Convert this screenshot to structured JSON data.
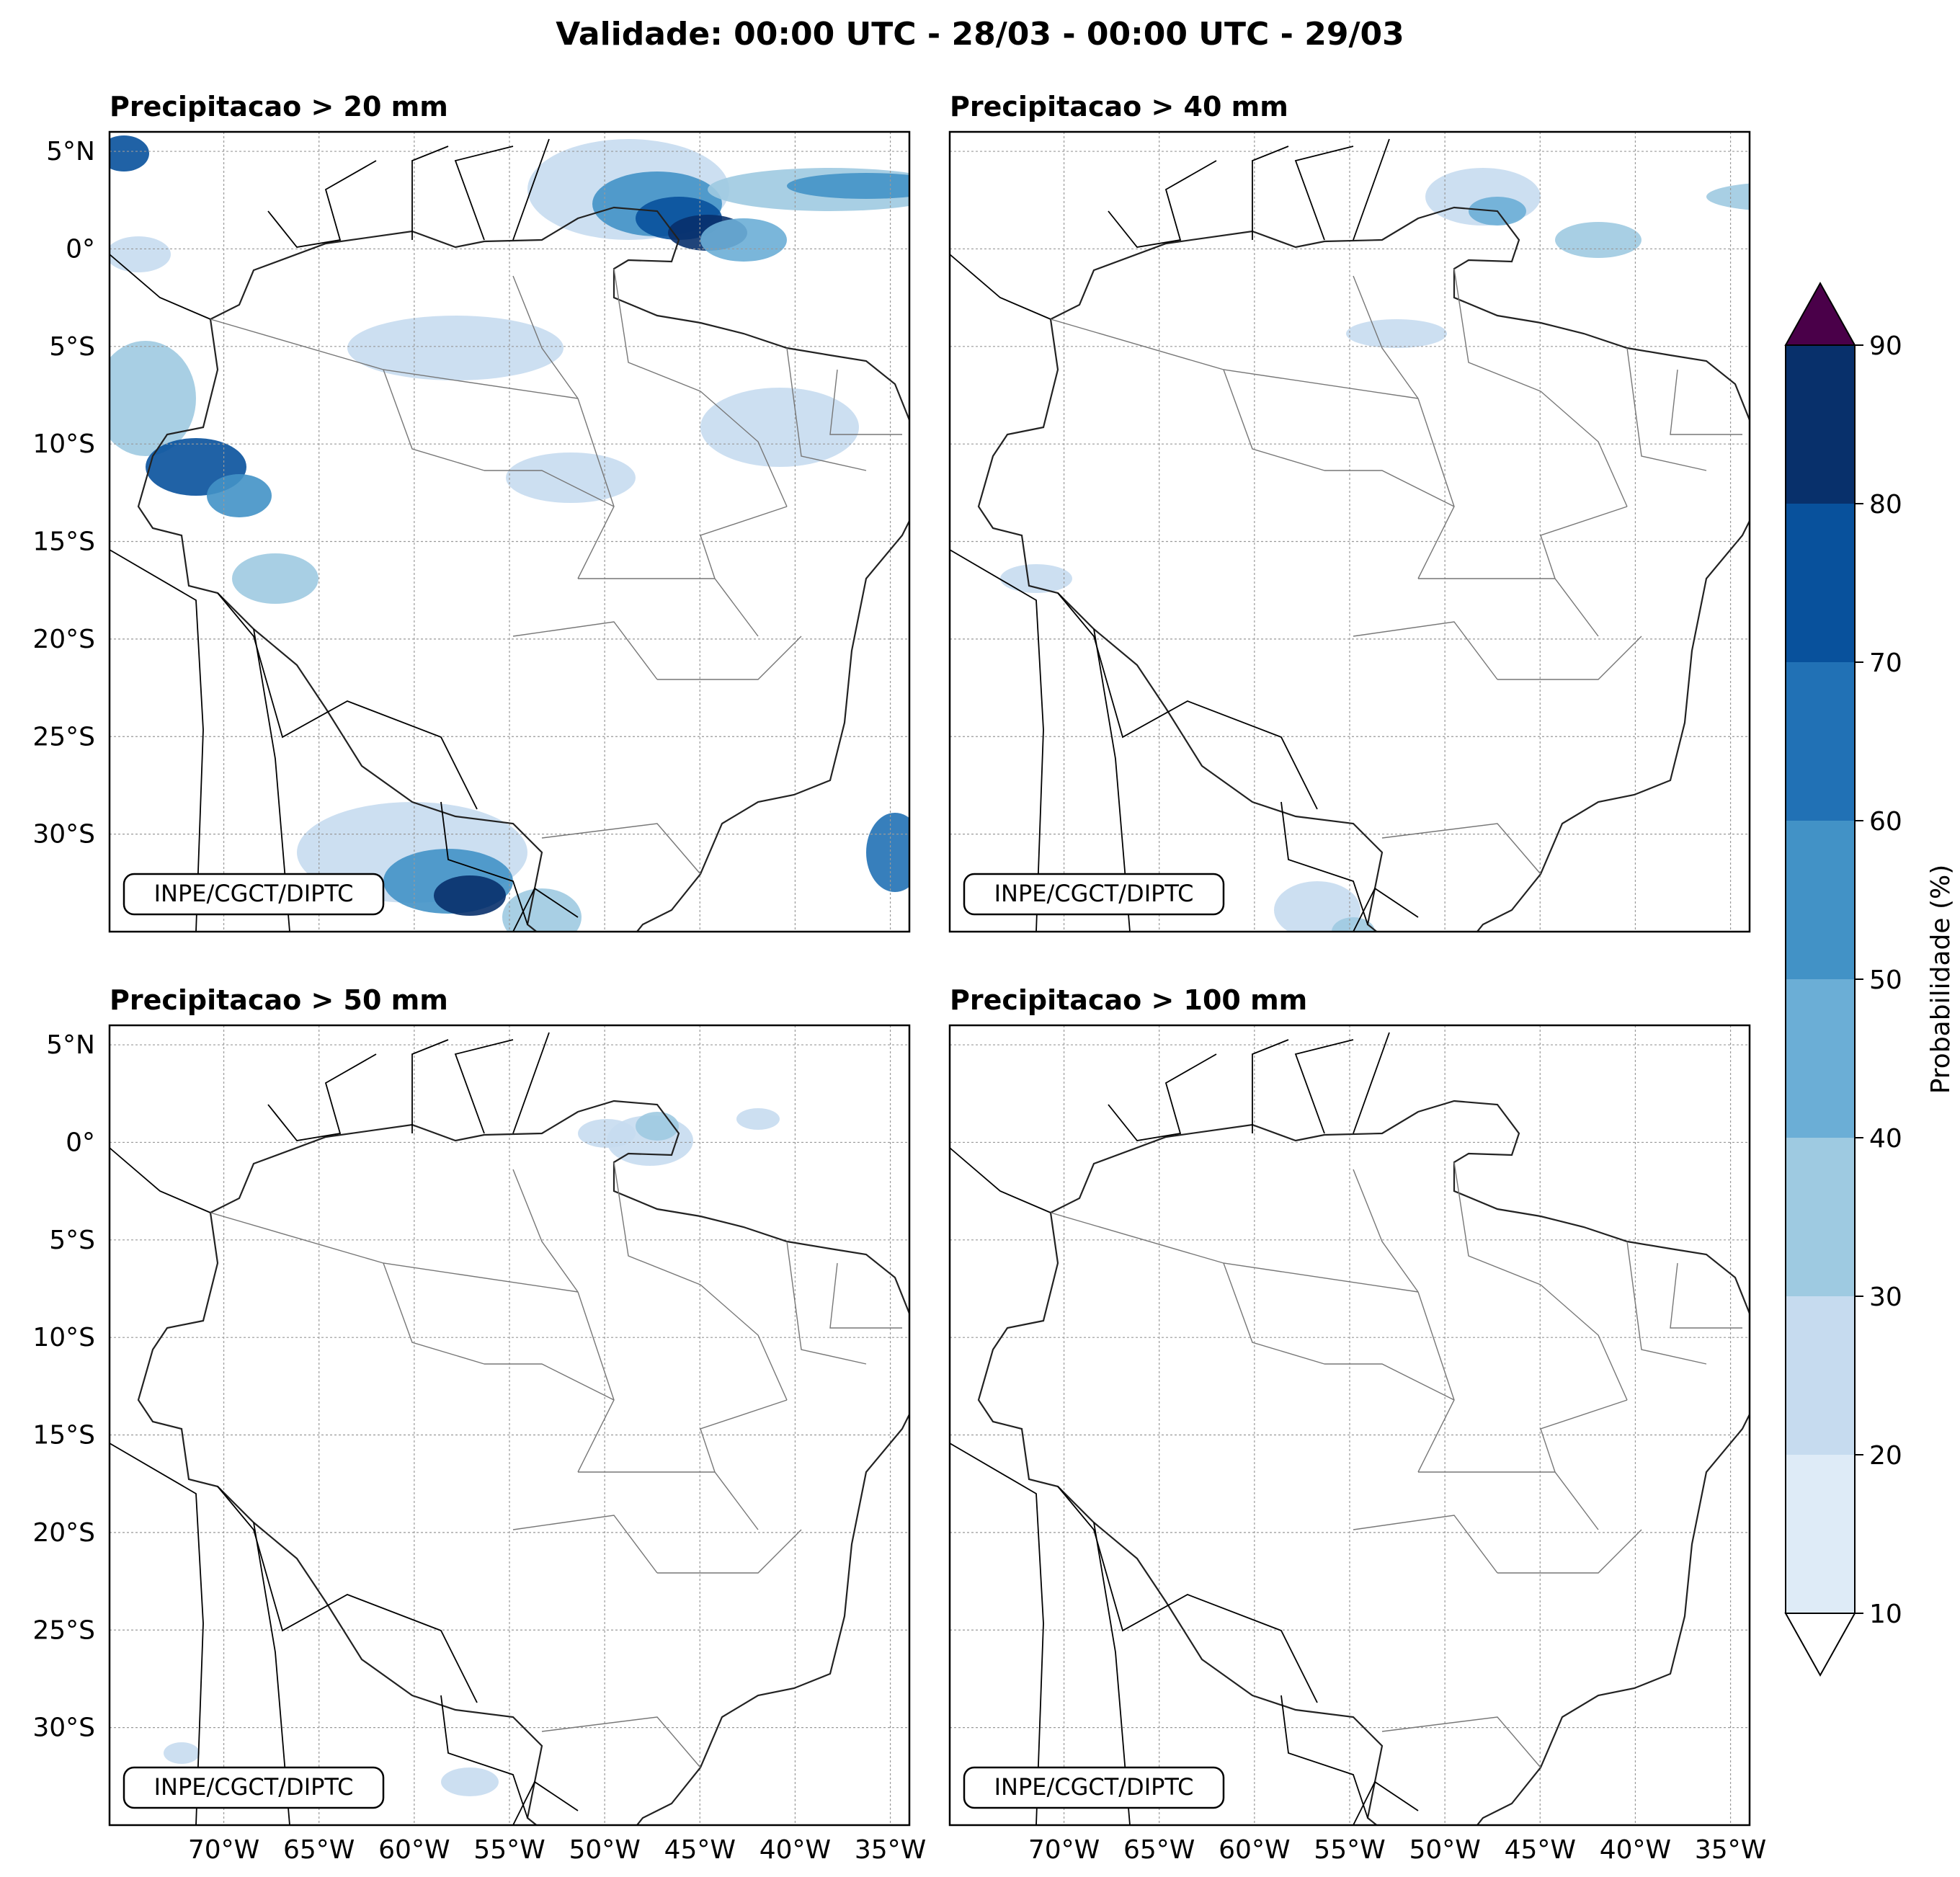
{
  "figure": {
    "title": "Validade: 00:00 UTC - 28/03 - 00:00 UTC - 29/03",
    "credit": "INPE/CGCT/DIPTC"
  },
  "panels": [
    {
      "id": "p20",
      "title": "Precipitacao > 20 mm",
      "threshold_mm": 20
    },
    {
      "id": "p40",
      "title": "Precipitacao > 40 mm",
      "threshold_mm": 40
    },
    {
      "id": "p50",
      "title": "Precipitacao > 50 mm",
      "threshold_mm": 50
    },
    {
      "id": "p100",
      "title": "Precipitacao > 100 mm",
      "threshold_mm": 100
    }
  ],
  "map": {
    "lon_range": [
      -76,
      -34
    ],
    "lat_range": [
      -35,
      6
    ],
    "lon_ticks": [
      {
        "value": -70,
        "label": "70°W"
      },
      {
        "value": -65,
        "label": "65°W"
      },
      {
        "value": -60,
        "label": "60°W"
      },
      {
        "value": -55,
        "label": "55°W"
      },
      {
        "value": -50,
        "label": "50°W"
      },
      {
        "value": -45,
        "label": "45°W"
      },
      {
        "value": -40,
        "label": "40°W"
      },
      {
        "value": -35,
        "label": "35°W"
      }
    ],
    "lat_ticks": [
      {
        "value": 5,
        "label": "5°N"
      },
      {
        "value": 0,
        "label": "0°"
      },
      {
        "value": -5,
        "label": "5°S"
      },
      {
        "value": -10,
        "label": "10°S"
      },
      {
        "value": -15,
        "label": "15°S"
      },
      {
        "value": -20,
        "label": "20°S"
      },
      {
        "value": -25,
        "label": "25°S"
      },
      {
        "value": -30,
        "label": "30°S"
      }
    ],
    "gridlines": true
  },
  "colorbar": {
    "label": "Probabilidade (%)",
    "ticks": [
      "10",
      "20",
      "30",
      "40",
      "50",
      "60",
      "70",
      "80",
      "90"
    ],
    "colors": [
      "#deebf7",
      "#c6dbef",
      "#9ecae1",
      "#6baed6",
      "#4292c6",
      "#2171b5",
      "#08519c",
      "#08306b"
    ],
    "over_color": "#4a0049",
    "under_color": "#ffffff"
  }
}
